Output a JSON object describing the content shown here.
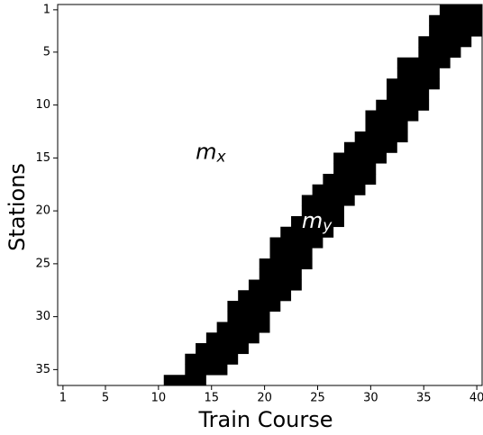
{
  "chart_data": {
    "type": "band-matrix",
    "xlabel": "Train Course",
    "ylabel": "Stations",
    "xlim": [
      0.5,
      40.5
    ],
    "ylim": [
      36.5,
      0.5
    ],
    "xticks": [
      1,
      5,
      10,
      15,
      20,
      25,
      30,
      35,
      40
    ],
    "yticks": [
      1,
      5,
      10,
      15,
      20,
      25,
      30,
      35
    ],
    "color": "#000000",
    "stations": [
      1,
      2,
      3,
      4,
      5,
      6,
      7,
      8,
      9,
      10,
      11,
      12,
      13,
      14,
      15,
      16,
      17,
      18,
      19,
      20,
      21,
      22,
      23,
      24,
      25,
      26,
      27,
      28,
      29,
      30,
      31,
      32,
      33,
      34,
      35,
      36
    ],
    "band_start": [
      37,
      36,
      36,
      35,
      35,
      33,
      33,
      32,
      32,
      31,
      30,
      30,
      29,
      28,
      27,
      27,
      26,
      25,
      24,
      24,
      23,
      22,
      21,
      21,
      20,
      20,
      19,
      18,
      17,
      17,
      16,
      15,
      14,
      13,
      13,
      11
    ],
    "band_end": [
      40,
      40,
      40,
      39,
      38,
      37,
      36,
      36,
      35,
      35,
      34,
      33,
      33,
      32,
      31,
      30,
      30,
      29,
      28,
      27,
      27,
      26,
      25,
      24,
      24,
      23,
      23,
      22,
      21,
      20,
      20,
      19,
      18,
      17,
      16,
      14
    ],
    "annotations": [
      {
        "text": "m",
        "subscript": "x",
        "x": 13.5,
        "y": 14.5,
        "color": "#000000"
      },
      {
        "text": "m",
        "subscript": "y",
        "x": 23.5,
        "y": 21,
        "color": "#ffffff"
      }
    ]
  }
}
